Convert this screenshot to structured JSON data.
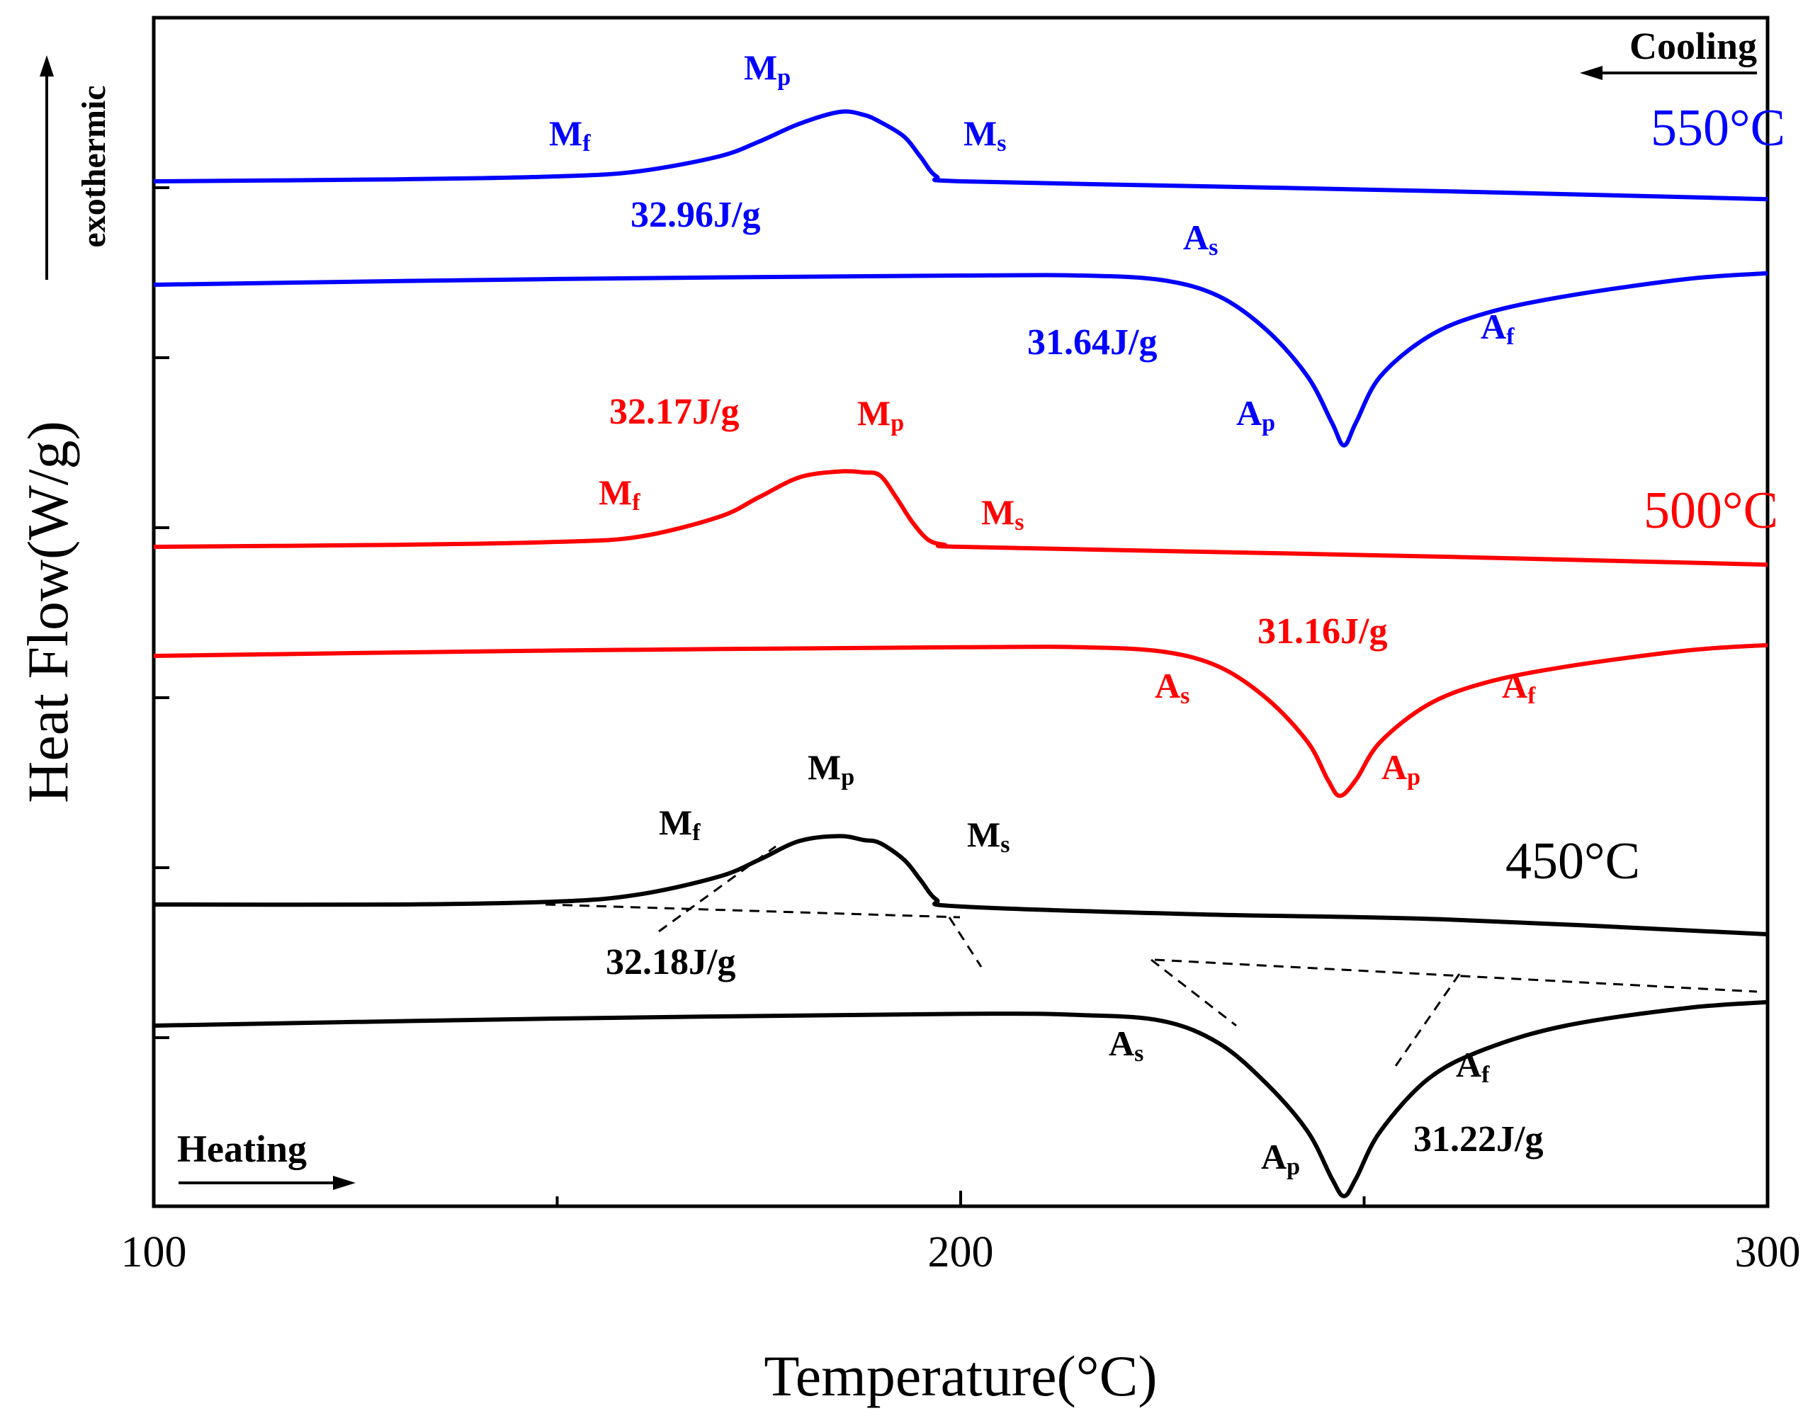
{
  "chart_data": {
    "type": "line",
    "xlabel": "Temperature(°C)",
    "ylabel": "Heat Flow(W/g)",
    "xlim": [
      100,
      300
    ],
    "x_ticks": [
      100,
      200,
      300
    ],
    "x_minor_ticks": [
      150,
      250
    ],
    "y_tick_labels_shown": false,
    "grid": false,
    "exothermic_label": "exothermic",
    "cooling_label": "Cooling",
    "heating_label": "Heating",
    "series": [
      {
        "name": "550°C",
        "color": "#0000ff",
        "cooling_curve": {
          "x": [
            100,
            130,
            150,
            160,
            170,
            175,
            180,
            185,
            188,
            190,
            193,
            195,
            197,
            200,
            230,
            260,
            300
          ],
          "y": [
            0.0,
            0.02,
            0.05,
            0.1,
            0.25,
            0.4,
            0.58,
            0.7,
            0.67,
            0.6,
            0.45,
            0.25,
            0.05,
            0.0,
            -0.05,
            -0.1,
            -0.18
          ],
          "labels": {
            "Mf": "M",
            "Mf_sub": "f",
            "Mp": "M",
            "Mp_sub": "p",
            "Ms": "M",
            "Ms_sub": "s"
          },
          "enthalpy": "32.96J/g"
        },
        "heating_curve": {
          "x": [
            100,
            150,
            200,
            215,
            225,
            232,
            238,
            243,
            246,
            247.5,
            249,
            252,
            258,
            265,
            275,
            290,
            300
          ],
          "y": [
            0.0,
            0.05,
            0.08,
            0.08,
            0.04,
            -0.1,
            -0.4,
            -0.8,
            -1.2,
            -1.4,
            -1.2,
            -0.8,
            -0.45,
            -0.25,
            -0.1,
            0.05,
            0.1
          ],
          "labels": {
            "As": "A",
            "As_sub": "s",
            "Ap": "A",
            "Ap_sub": "p",
            "Af": "A",
            "Af_sub": "f"
          },
          "enthalpy": "31.64J/g"
        }
      },
      {
        "name": "500°C",
        "color": "#ff0000",
        "cooling_curve": {
          "x": [
            100,
            130,
            150,
            160,
            170,
            175,
            180,
            185,
            188,
            190,
            192,
            194,
            196,
            198,
            200,
            230,
            260,
            300
          ],
          "y": [
            0.0,
            0.02,
            0.05,
            0.1,
            0.3,
            0.5,
            0.7,
            0.76,
            0.75,
            0.72,
            0.5,
            0.25,
            0.07,
            0.02,
            0.0,
            -0.05,
            -0.1,
            -0.18
          ],
          "labels": {
            "Mf": "M",
            "Mf_sub": "f",
            "Mp": "M",
            "Mp_sub": "p",
            "Ms": "M",
            "Ms_sub": "s"
          },
          "enthalpy": "32.17J/g"
        },
        "heating_curve": {
          "x": [
            100,
            150,
            200,
            215,
            225,
            232,
            238,
            243,
            245.5,
            247,
            249,
            252,
            258,
            265,
            275,
            290,
            300
          ],
          "y": [
            0.0,
            0.05,
            0.08,
            0.08,
            0.04,
            -0.1,
            -0.4,
            -0.8,
            -1.15,
            -1.3,
            -1.15,
            -0.8,
            -0.45,
            -0.25,
            -0.1,
            0.05,
            0.1
          ],
          "labels": {
            "As": "A",
            "As_sub": "s",
            "Ap": "A",
            "Ap_sub": "p",
            "Af": "A",
            "Af_sub": "f"
          },
          "enthalpy": "31.16J/g"
        }
      },
      {
        "name": "450°C",
        "color": "#000000",
        "cooling_curve": {
          "x": [
            100,
            130,
            150,
            160,
            170,
            175,
            180,
            185,
            188,
            190,
            193,
            195,
            197,
            200,
            230,
            260,
            300
          ],
          "y": [
            0.0,
            0.0,
            0.03,
            0.1,
            0.28,
            0.45,
            0.64,
            0.69,
            0.65,
            0.62,
            0.45,
            0.25,
            0.05,
            -0.02,
            -0.1,
            -0.15,
            -0.3
          ],
          "labels": {
            "Mf": "M",
            "Mf_sub": "f",
            "Mp": "M",
            "Mp_sub": "p",
            "Ms": "M",
            "Ms_sub": "s"
          },
          "enthalpy": "32.18J/g",
          "tangent_lines": true
        },
        "heating_curve": {
          "x": [
            100,
            150,
            200,
            215,
            225,
            232,
            238,
            243,
            246,
            247.5,
            249,
            252,
            258,
            265,
            275,
            290,
            300
          ],
          "y": [
            0.0,
            0.06,
            0.1,
            0.09,
            0.04,
            -0.15,
            -0.5,
            -0.9,
            -1.3,
            -1.45,
            -1.3,
            -0.9,
            -0.45,
            -0.2,
            0.0,
            0.15,
            0.2
          ],
          "labels": {
            "As": "A",
            "As_sub": "s",
            "Ap": "A",
            "Ap_sub": "p",
            "Af": "A",
            "Af_sub": "f"
          },
          "enthalpy": "31.22J/g",
          "tangent_lines": true
        }
      }
    ]
  }
}
